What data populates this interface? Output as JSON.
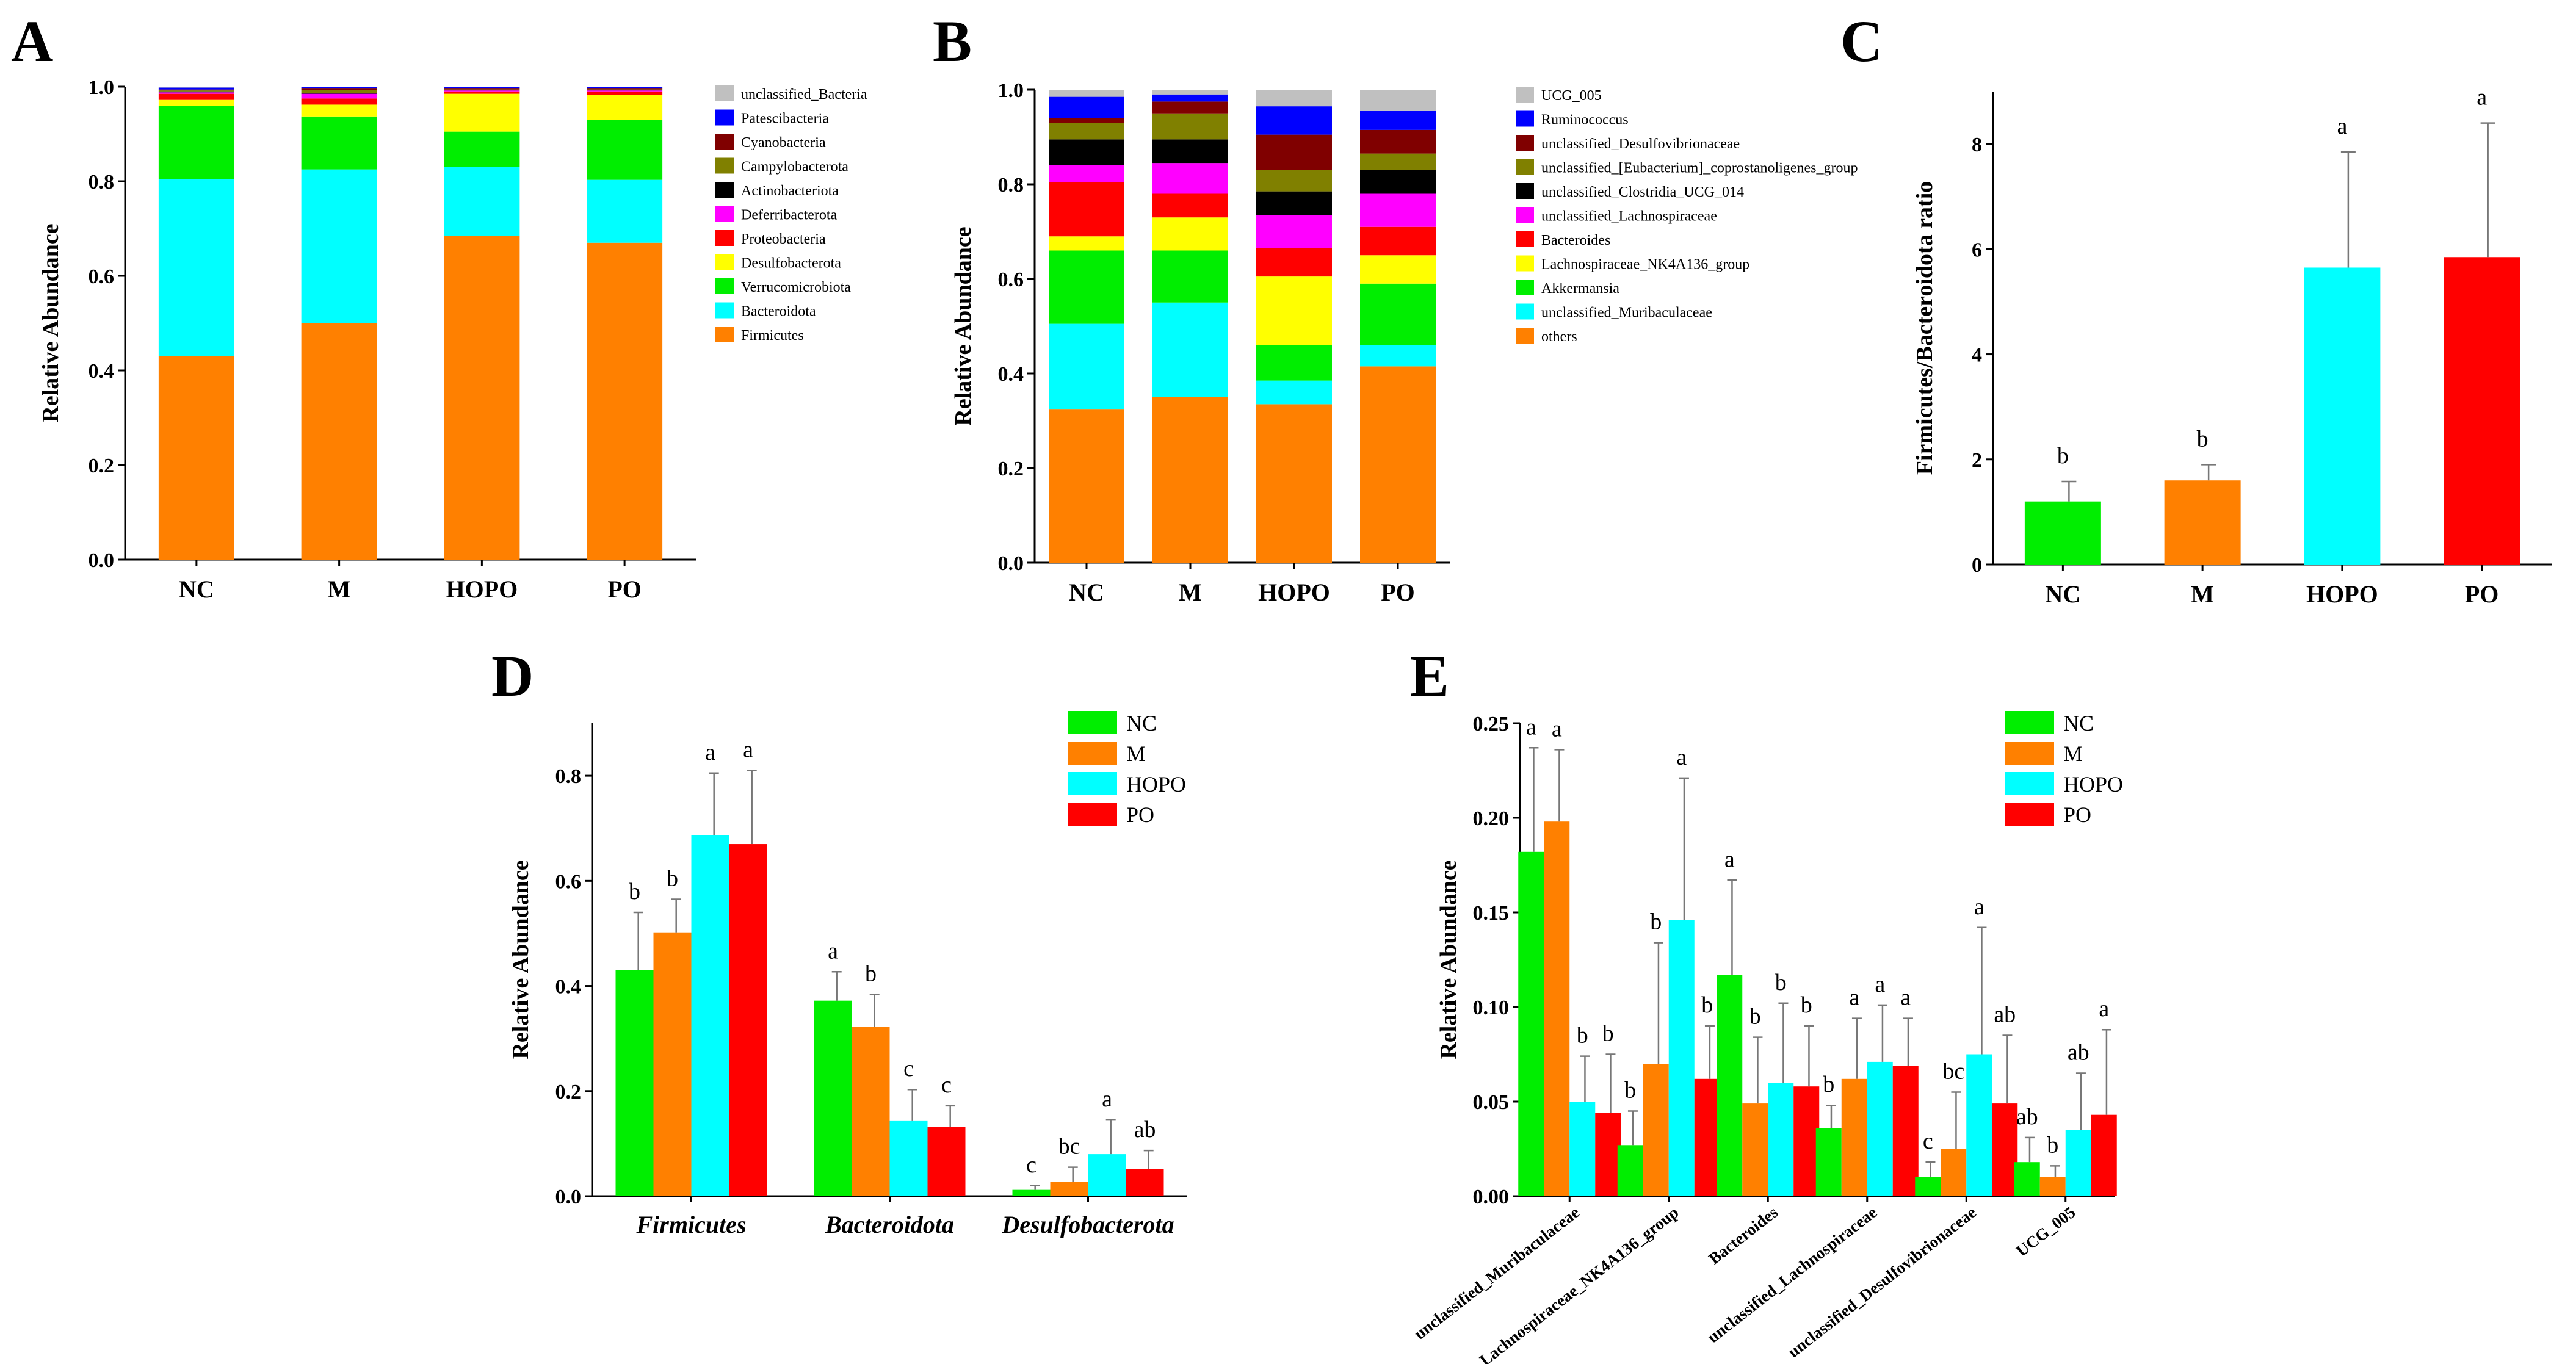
{
  "chart_data": [
    {
      "panel": "A",
      "type": "bar",
      "stacked": true,
      "title": "",
      "xlabel": "",
      "ylabel": "Relative Abundance",
      "ylim": [
        0,
        1.0
      ],
      "yticks": [
        "0.0",
        "0.2",
        "0.4",
        "0.6",
        "0.8",
        "1.0"
      ],
      "categories": [
        "NC",
        "M",
        "HOPO",
        "PO"
      ],
      "legend_position": "right",
      "series": [
        {
          "name": "Firmicutes",
          "color": "#FF8000",
          "values": [
            0.43,
            0.5,
            0.685,
            0.67
          ]
        },
        {
          "name": "Bacteroidota",
          "color": "#00FFFF",
          "values": [
            0.375,
            0.325,
            0.145,
            0.133
          ]
        },
        {
          "name": "Verrucomicrobiota",
          "color": "#00EE00",
          "values": [
            0.155,
            0.112,
            0.075,
            0.127
          ]
        },
        {
          "name": "Desulfobacterota",
          "color": "#FFFF00",
          "values": [
            0.012,
            0.025,
            0.08,
            0.053
          ]
        },
        {
          "name": "Proteobacteria",
          "color": "#FF0000",
          "values": [
            0.013,
            0.013,
            0.005,
            0.007
          ]
        },
        {
          "name": "Deferribacterota",
          "color": "#FF00FF",
          "values": [
            0.003,
            0.01,
            0.002,
            0.002
          ]
        },
        {
          "name": "Actinobacteriota",
          "color": "#000000",
          "values": [
            0.002,
            0.002,
            0.001,
            0.001
          ]
        },
        {
          "name": "Campylobacterota",
          "color": "#808000",
          "values": [
            0.002,
            0.006,
            0.001,
            0.001
          ]
        },
        {
          "name": "Cyanobacteria",
          "color": "#800000",
          "values": [
            0.002,
            0.003,
            0.002,
            0.002
          ]
        },
        {
          "name": "Patescibacteria",
          "color": "#0000FF",
          "values": [
            0.004,
            0.003,
            0.003,
            0.003
          ]
        },
        {
          "name": "unclassified_Bacteria",
          "color": "#C0C0C0",
          "values": [
            0.002,
            0.001,
            0.001,
            0.001
          ]
        }
      ]
    },
    {
      "panel": "B",
      "type": "bar",
      "stacked": true,
      "title": "",
      "xlabel": "",
      "ylabel": "Relative Abundance",
      "ylim": [
        0,
        1.0
      ],
      "yticks": [
        "0.0",
        "0.2",
        "0.4",
        "0.6",
        "0.8",
        "1.0"
      ],
      "categories": [
        "NC",
        "M",
        "HOPO",
        "PO"
      ],
      "legend_position": "right",
      "series": [
        {
          "name": "others",
          "color": "#FF8000",
          "values": [
            0.325,
            0.35,
            0.335,
            0.415
          ]
        },
        {
          "name": "unclassified_Muribaculaceae",
          "color": "#00FFFF",
          "values": [
            0.18,
            0.2,
            0.05,
            0.045
          ]
        },
        {
          "name": "Akkermansia",
          "color": "#00EE00",
          "values": [
            0.155,
            0.11,
            0.075,
            0.13
          ]
        },
        {
          "name": "Lachnospiraceae_NK4A136_group",
          "color": "#FFFF00",
          "values": [
            0.03,
            0.07,
            0.145,
            0.06
          ]
        },
        {
          "name": "Bacteroides",
          "color": "#FF0000",
          "values": [
            0.115,
            0.05,
            0.06,
            0.06
          ]
        },
        {
          "name": "unclassified_Lachnospiraceae",
          "color": "#FF00FF",
          "values": [
            0.035,
            0.065,
            0.07,
            0.07
          ]
        },
        {
          "name": "unclassified_Clostridia_UCG_014",
          "color": "#000000",
          "values": [
            0.055,
            0.05,
            0.05,
            0.05
          ]
        },
        {
          "name": "unclassified_[Eubacterium]_coprostanoligenes_group",
          "color": "#808000",
          "values": [
            0.035,
            0.055,
            0.045,
            0.035
          ]
        },
        {
          "name": "unclassified_Desulfovibrionaceae",
          "color": "#800000",
          "values": [
            0.01,
            0.025,
            0.075,
            0.05
          ]
        },
        {
          "name": "Ruminococcus",
          "color": "#0000FF",
          "values": [
            0.045,
            0.015,
            0.06,
            0.04
          ]
        },
        {
          "name": "UCG_005",
          "color": "#C0C0C0",
          "values": [
            0.015,
            0.01,
            0.035,
            0.045
          ]
        }
      ]
    },
    {
      "panel": "C",
      "type": "bar",
      "title": "",
      "xlabel": "",
      "ylabel": "Firmicutes/Bacteroidota ratio",
      "ylim": [
        0,
        9
      ],
      "yticks": [
        "0",
        "2",
        "4",
        "6",
        "8"
      ],
      "categories": [
        "NC",
        "M",
        "HOPO",
        "PO"
      ],
      "colors": [
        "#00EE00",
        "#FF8000",
        "#00FFFF",
        "#FF0000"
      ],
      "values": [
        1.2,
        1.6,
        5.65,
        5.85
      ],
      "errors": [
        0.38,
        0.3,
        2.2,
        2.55
      ],
      "significance": [
        "b",
        "b",
        "a",
        "a"
      ]
    },
    {
      "panel": "D",
      "type": "bar",
      "title": "",
      "xlabel": "",
      "ylabel": "Relative Abundance",
      "ylim": [
        0,
        0.9
      ],
      "yticks": [
        "0.0",
        "0.2",
        "0.4",
        "0.6",
        "0.8"
      ],
      "categories": [
        "Firmicutes",
        "Bacteroidota",
        "Desulfobacterota"
      ],
      "legend_position": "top-right",
      "series": [
        {
          "name": "NC",
          "color": "#00EE00",
          "values": [
            0.43,
            0.372,
            0.012
          ],
          "errors": [
            0.11,
            0.055,
            0.008
          ],
          "significance": [
            "b",
            "a",
            "c"
          ]
        },
        {
          "name": "M",
          "color": "#FF8000",
          "values": [
            0.502,
            0.322,
            0.027
          ],
          "errors": [
            0.063,
            0.062,
            0.028
          ],
          "significance": [
            "b",
            "b",
            "bc"
          ]
        },
        {
          "name": "HOPO",
          "color": "#00FFFF",
          "values": [
            0.687,
            0.143,
            0.08
          ],
          "errors": [
            0.118,
            0.06,
            0.065
          ],
          "significance": [
            "a",
            "c",
            "a"
          ]
        },
        {
          "name": "PO",
          "color": "#FF0000",
          "values": [
            0.67,
            0.132,
            0.052
          ],
          "errors": [
            0.14,
            0.04,
            0.035
          ],
          "significance": [
            "a",
            "c",
            "ab"
          ]
        }
      ]
    },
    {
      "panel": "E",
      "type": "bar",
      "title": "",
      "xlabel": "",
      "ylabel": "Relative Abundance",
      "ylim": [
        0,
        0.25
      ],
      "yticks": [
        "0.00",
        "0.05",
        "0.10",
        "0.15",
        "0.20",
        "0.25"
      ],
      "categories": [
        "unclassified_Muribaculaceae",
        "Lachnospiraceae_NK4A136_group",
        "Bacteroides",
        "unclassified_Lachnospiraceae",
        "unclassified_Desulfovibrionaceae",
        "UCG_005"
      ],
      "legend_position": "top-right",
      "series": [
        {
          "name": "NC",
          "color": "#00EE00",
          "values": [
            0.182,
            0.027,
            0.117,
            0.036,
            0.01,
            0.018
          ],
          "errors": [
            0.055,
            0.018,
            0.05,
            0.012,
            0.008,
            0.013
          ],
          "significance": [
            "a",
            "b",
            "a",
            "b",
            "c",
            "ab"
          ]
        },
        {
          "name": "M",
          "color": "#FF8000",
          "values": [
            0.198,
            0.07,
            0.049,
            0.062,
            0.025,
            0.01
          ],
          "errors": [
            0.038,
            0.064,
            0.035,
            0.032,
            0.03,
            0.006
          ],
          "significance": [
            "a",
            "b",
            "b",
            "a",
            "bc",
            "b"
          ]
        },
        {
          "name": "HOPO",
          "color": "#00FFFF",
          "values": [
            0.05,
            0.146,
            0.06,
            0.071,
            0.075,
            0.035
          ],
          "errors": [
            0.024,
            0.075,
            0.042,
            0.03,
            0.067,
            0.03
          ],
          "significance": [
            "b",
            "a",
            "b",
            "a",
            "a",
            "ab"
          ]
        },
        {
          "name": "PO",
          "color": "#FF0000",
          "values": [
            0.044,
            0.062,
            0.058,
            0.069,
            0.049,
            0.043
          ],
          "errors": [
            0.031,
            0.028,
            0.032,
            0.025,
            0.036,
            0.045
          ],
          "significance": [
            "b",
            "b",
            "b",
            "a",
            "ab",
            "a"
          ]
        }
      ]
    }
  ]
}
